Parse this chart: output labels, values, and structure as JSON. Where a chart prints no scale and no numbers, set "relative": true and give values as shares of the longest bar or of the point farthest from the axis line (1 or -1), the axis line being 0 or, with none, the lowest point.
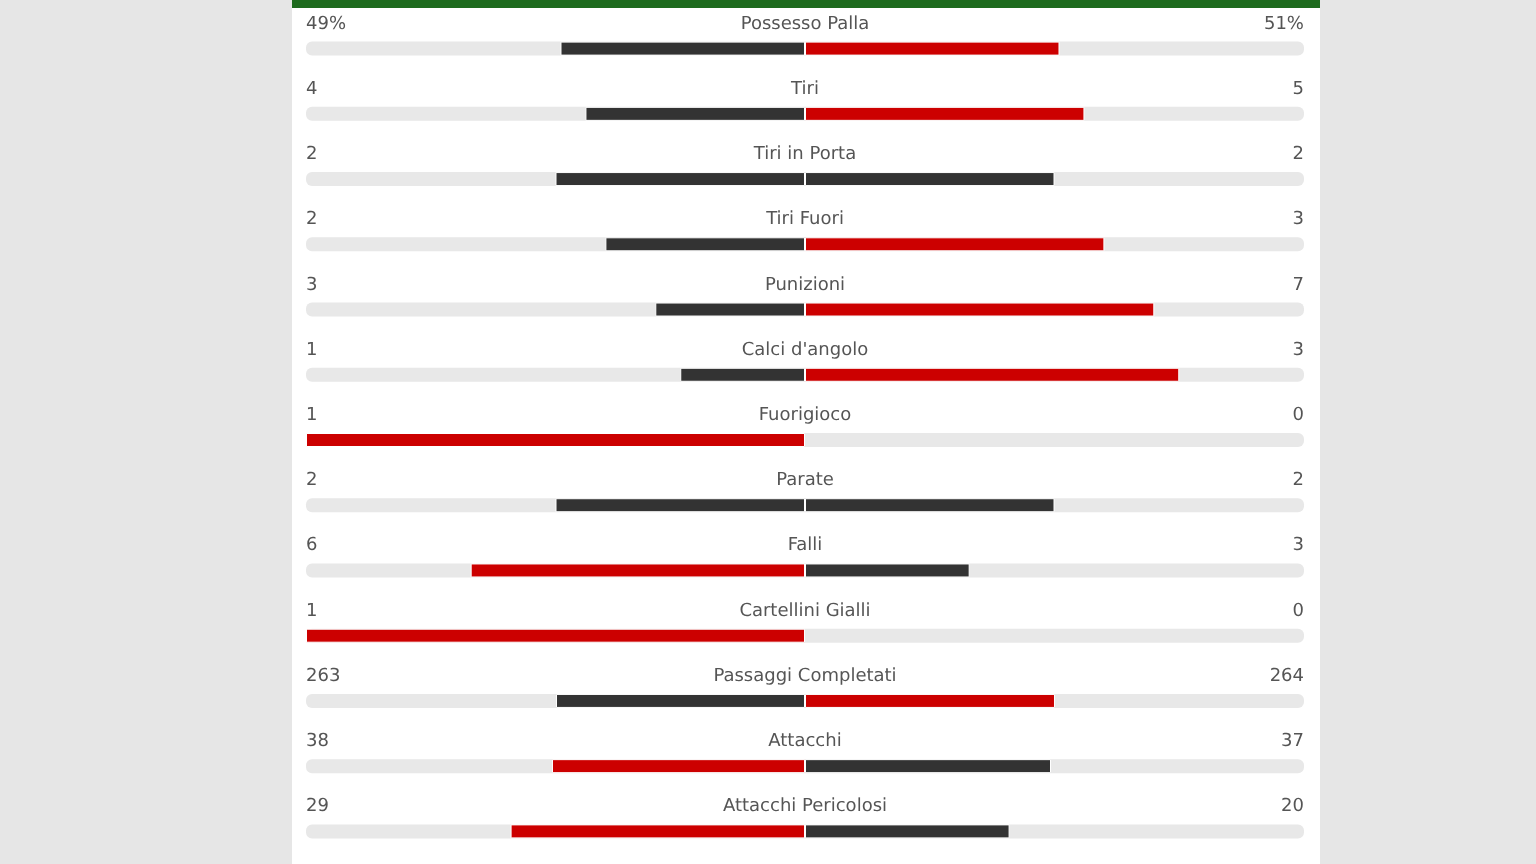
{
  "chart_data": {
    "type": "bar",
    "orientation": "horizontal",
    "stacked": true,
    "relative": true,
    "categories": [
      "Possesso Palla",
      "Tiri",
      "Tiri in Porta",
      "Tiri Fuori",
      "Punizioni",
      "Calci d'angolo",
      "Fuorigioco",
      "Parate",
      "Falli",
      "Cartellini Gialli",
      "Passaggi Completati",
      "Attacchi",
      "Attacchi Pericolosi"
    ],
    "series": [
      {
        "values": [
          -0.49,
          -0.44,
          -0.5,
          -0.4,
          -0.3,
          -0.25,
          -1,
          -0.5,
          -0.67,
          -1,
          -0.499,
          -0.507,
          -0.59
        ],
        "colors": [
          "#333333",
          "#333333",
          "#333333",
          "#333333",
          "#333333",
          "#333333",
          "#cc0000",
          "#333333",
          "#cc0000",
          "#cc0000",
          "#333333",
          "#cc0000",
          "#cc0000"
        ]
      },
      {
        "values": [
          0.51,
          0.56,
          0.5,
          0.6,
          0.7,
          0.75,
          0,
          0.5,
          0.33,
          0,
          0.501,
          0.493,
          0.41
        ],
        "colors": [
          "#cc0000",
          "#cc0000",
          "#333333",
          "#cc0000",
          "#cc0000",
          "#cc0000",
          "#cc0000",
          "#333333",
          "#333333",
          "#cc0000",
          "#cc0000",
          "#333333",
          "#333333"
        ]
      }
    ],
    "annotations": [
      "49%",
      "51%",
      "4",
      "5",
      "2",
      "2",
      "2",
      "3",
      "3",
      "7",
      "1",
      "3",
      "1",
      "0",
      "2",
      "2",
      "6",
      "3",
      "1",
      "0",
      "263",
      "264",
      "38",
      "37",
      "29",
      "20"
    ]
  }
}
